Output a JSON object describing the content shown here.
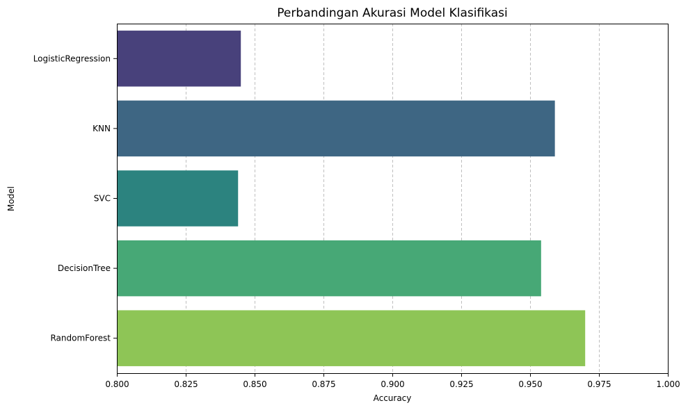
{
  "chart_data": {
    "type": "bar",
    "orientation": "horizontal",
    "title": "Perbandingan Akurasi Model Klasifikasi",
    "xlabel": "Accuracy",
    "ylabel": "Model",
    "xlim": [
      0.8,
      1.0
    ],
    "xticks": [
      "0.800",
      "0.825",
      "0.850",
      "0.875",
      "0.900",
      "0.925",
      "0.950",
      "0.975",
      "1.000"
    ],
    "grid": "x-dashed",
    "categories": [
      "LogisticRegression",
      "KNN",
      "SVC",
      "DecisionTree",
      "RandomForest"
    ],
    "values": [
      0.845,
      0.959,
      0.844,
      0.954,
      0.97
    ],
    "colors": [
      "#48417b",
      "#3e6683",
      "#2c837f",
      "#47a876",
      "#8ec556"
    ]
  }
}
